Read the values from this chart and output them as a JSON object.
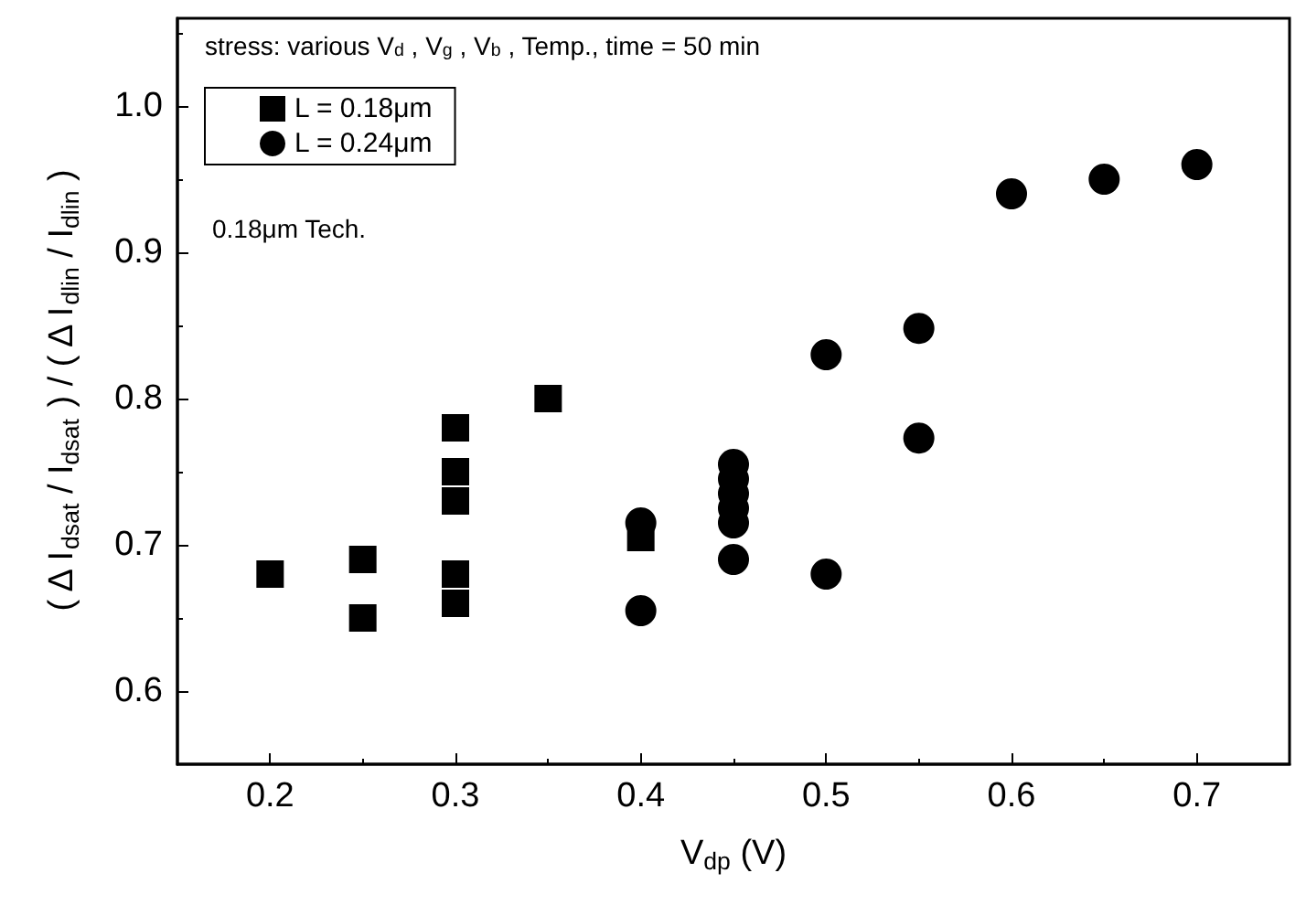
{
  "chart_data": {
    "type": "scatter",
    "xlabel": "V$_{dp}$ (V)",
    "ylabel": "( Δ I$_{dsat}$ / I$_{dsat}$ ) / ( Δ I$_{dlin}$ / I$_{dlin}$ )",
    "annotations": [
      "stress: various V$_{d}$ , V$_{g}$ , V$_{b}$ , Temp., time = 50 min",
      "0.18μm Tech."
    ],
    "xlim": [
      0.15,
      0.75
    ],
    "xticks": [
      0.2,
      0.3,
      0.4,
      0.5,
      0.6,
      0.7
    ],
    "ylim": [
      0.55,
      1.06
    ],
    "yticks": [
      0.6,
      0.7,
      0.8,
      0.9,
      {
        "value": 1,
        "label": "1.0"
      }
    ],
    "grid": false,
    "legend": "top left",
    "series": [
      {
        "name": "L = 0.18μm",
        "color": "#000000",
        "marker": "square",
        "x": [
          0.2,
          0.25,
          0.25,
          0.3,
          0.3,
          0.3,
          0.3,
          0.3,
          0.35,
          0.4
        ],
        "values": [
          0.68,
          0.69,
          0.65,
          0.78,
          0.75,
          0.73,
          0.68,
          0.66,
          0.8,
          0.705
        ]
      },
      {
        "name": "L = 0.24μm",
        "color": "#000000",
        "marker": "circle",
        "x": [
          0.4,
          0.4,
          0.45,
          0.45,
          0.45,
          0.45,
          0.45,
          0.45,
          0.5,
          0.5,
          0.55,
          0.55,
          0.6,
          0.65,
          0.7
        ],
        "values": [
          0.715,
          0.655,
          0.755,
          0.745,
          0.735,
          0.725,
          0.715,
          0.69,
          0.83,
          0.68,
          0.848,
          0.773,
          0.94,
          0.95,
          0.96
        ]
      }
    ]
  }
}
